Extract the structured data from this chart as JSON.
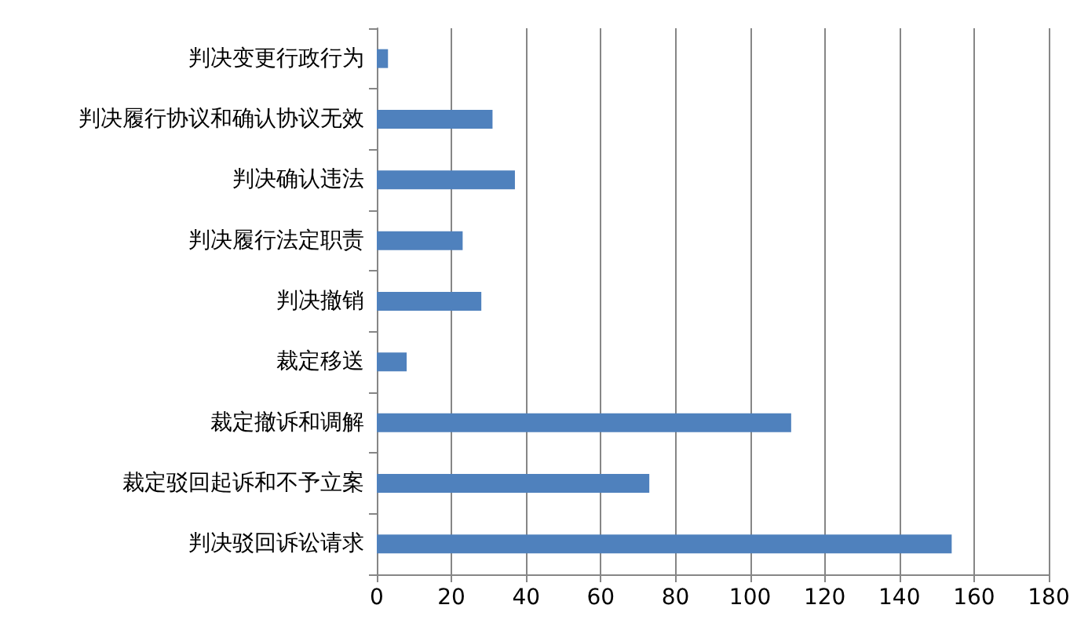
{
  "chart_data": {
    "type": "bar",
    "orientation": "horizontal",
    "categories": [
      "判决变更行政行为",
      "判决履行协议和确认协议无效",
      "判决确认违法",
      "判决履行法定职责",
      "判决撤销",
      "裁定移送",
      "裁定撤诉和调解",
      "裁定驳回起诉和不予立案",
      "判决驳回诉讼请求"
    ],
    "values": [
      3,
      31,
      37,
      23,
      28,
      8,
      111,
      73,
      154
    ],
    "color": "#4f81bd",
    "xlim": [
      0,
      180
    ],
    "xticks": [
      0,
      20,
      40,
      60,
      80,
      100,
      120,
      140,
      160,
      180
    ],
    "grid": "x"
  }
}
